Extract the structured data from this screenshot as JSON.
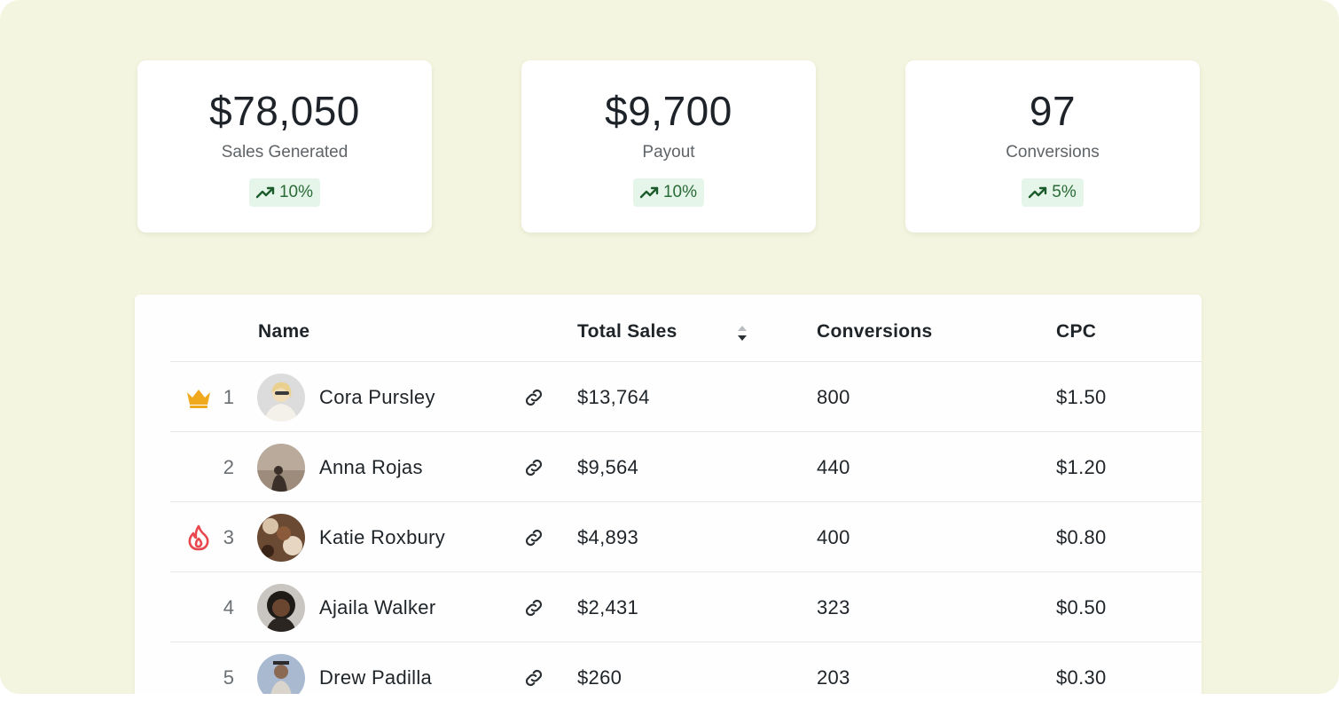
{
  "stats": [
    {
      "value": "$78,050",
      "label": "Sales Generated",
      "change": "10%"
    },
    {
      "value": "$9,700",
      "label": "Payout",
      "change": "10%"
    },
    {
      "value": "97",
      "label": "Conversions",
      "change": "5%"
    }
  ],
  "table": {
    "headers": {
      "name": "Name",
      "total_sales": "Total Sales",
      "conversions": "Conversions",
      "cpc": "CPC"
    },
    "rows": [
      {
        "rank": "1",
        "name": "Cora Pursley",
        "total_sales": "$13,764",
        "conversions": "800",
        "cpc": "$1.50",
        "badge": "crown-icon"
      },
      {
        "rank": "2",
        "name": "Anna Rojas",
        "total_sales": "$9,564",
        "conversions": "440",
        "cpc": "$1.20",
        "badge": ""
      },
      {
        "rank": "3",
        "name": "Katie Roxbury",
        "total_sales": "$4,893",
        "conversions": "400",
        "cpc": "$0.80",
        "badge": "flame-icon"
      },
      {
        "rank": "4",
        "name": "Ajaila Walker",
        "total_sales": "$2,431",
        "conversions": "323",
        "cpc": "$0.50",
        "badge": ""
      },
      {
        "rank": "5",
        "name": "Drew Padilla",
        "total_sales": "$260",
        "conversions": "203",
        "cpc": "$0.30",
        "badge": ""
      }
    ]
  },
  "colors": {
    "background": "#f3f5e0",
    "card": "#ffffff",
    "badge_bg": "#e6f5e9",
    "badge_text": "#2a6b38",
    "crown": "#f0a81c",
    "flame": "#e8484d"
  },
  "icons": {
    "trend": "trending-up-icon",
    "link": "link-icon",
    "sort": "sort-icon"
  }
}
